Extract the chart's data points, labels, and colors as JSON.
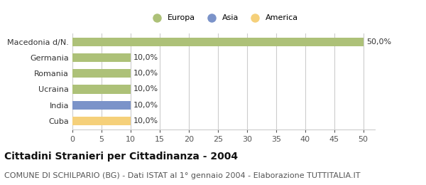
{
  "categories": [
    "Cuba",
    "India",
    "Ucraina",
    "Romania",
    "Germania",
    "Macedonia d/N."
  ],
  "values": [
    10.0,
    10.0,
    10.0,
    10.0,
    10.0,
    50.0
  ],
  "colors": [
    "#f5d07a",
    "#7b93c9",
    "#adc178",
    "#adc178",
    "#adc178",
    "#adc178"
  ],
  "bar_labels": [
    "10,0%",
    "10,0%",
    "10,0%",
    "10,0%",
    "10,0%",
    "50,0%"
  ],
  "legend_labels": [
    "Europa",
    "Asia",
    "America"
  ],
  "legend_colors": [
    "#adc178",
    "#7b93c9",
    "#f5d07a"
  ],
  "xlim": [
    0,
    52
  ],
  "xticks": [
    0,
    5,
    10,
    15,
    20,
    25,
    30,
    35,
    40,
    45,
    50
  ],
  "title": "Cittadini Stranieri per Cittadinanza - 2004",
  "subtitle": "COMUNE DI SCHILPARIO (BG) - Dati ISTAT al 1° gennaio 2004 - Elaborazione TUTTITALIA.IT",
  "title_fontsize": 10,
  "subtitle_fontsize": 8,
  "label_fontsize": 8,
  "tick_fontsize": 8,
  "background_color": "#ffffff",
  "grid_color": "#cccccc",
  "bar_height": 0.55
}
